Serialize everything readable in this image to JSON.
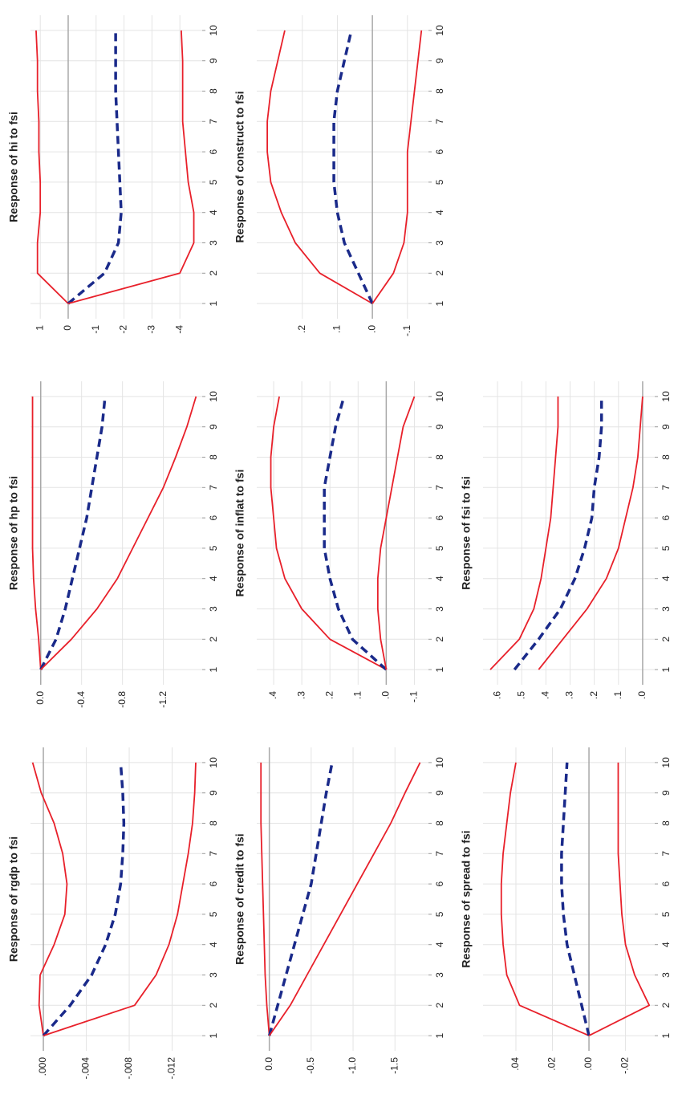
{
  "chart_data": [
    {
      "type": "line",
      "title": "Response of rgdp to fsi",
      "x": [
        1,
        2,
        3,
        4,
        5,
        6,
        7,
        8,
        9,
        10
      ],
      "xlim": [
        0.5,
        10.5
      ],
      "ylim": [
        -0.0148,
        0.0012
      ],
      "grid": true,
      "yticks": [
        {
          "value": 0,
          "label": ".000"
        },
        {
          "value": -0.004,
          "label": "-.004"
        },
        {
          "value": -0.008,
          "label": "-.008"
        },
        {
          "value": -0.012,
          "label": "-.012"
        }
      ],
      "series": [
        {
          "color": "#e8202a",
          "values": [
            0,
            0.0004,
            0.0003,
            -0.001,
            -0.002,
            -0.0022,
            -0.0018,
            -0.001,
            0.0002,
            0.001
          ]
        },
        {
          "color": "#1a2a8a",
          "dashed": true,
          "values": [
            0,
            -0.0025,
            -0.0045,
            -0.0058,
            -0.0067,
            -0.0072,
            -0.0074,
            -0.0075,
            -0.0074,
            -0.0072
          ]
        },
        {
          "color": "#e8202a",
          "values": [
            0,
            -0.0085,
            -0.0105,
            -0.0117,
            -0.0125,
            -0.013,
            -0.0135,
            -0.0139,
            -0.0141,
            -0.0142
          ]
        }
      ]
    },
    {
      "type": "line",
      "title": "Response of hp to fsi",
      "x": [
        1,
        2,
        3,
        4,
        5,
        6,
        7,
        8,
        9,
        10
      ],
      "xlim": [
        0.5,
        10.5
      ],
      "ylim": [
        -1.58,
        0.1
      ],
      "grid": true,
      "yticks": [
        {
          "value": 0,
          "label": "0.0"
        },
        {
          "value": -0.4,
          "label": "-0.4"
        },
        {
          "value": -0.8,
          "label": "-0.8"
        },
        {
          "value": -1.2,
          "label": "-1.2"
        }
      ],
      "series": [
        {
          "color": "#e8202a",
          "values": [
            0,
            0.02,
            0.05,
            0.07,
            0.08,
            0.08,
            0.08,
            0.08,
            0.08,
            0.08
          ]
        },
        {
          "color": "#1a2a8a",
          "dashed": true,
          "values": [
            0,
            -0.15,
            -0.24,
            -0.31,
            -0.38,
            -0.45,
            -0.5,
            -0.55,
            -0.6,
            -0.63
          ]
        },
        {
          "color": "#e8202a",
          "values": [
            0,
            -0.3,
            -0.55,
            -0.75,
            -0.9,
            -1.05,
            -1.2,
            -1.32,
            -1.43,
            -1.52
          ]
        }
      ]
    },
    {
      "type": "line",
      "title": "Response of hi to fsi",
      "x": [
        1,
        2,
        3,
        4,
        5,
        6,
        7,
        8,
        9,
        10
      ],
      "xlim": [
        0.5,
        10.5
      ],
      "ylim": [
        -4.8,
        1.35
      ],
      "grid": true,
      "yticks": [
        1,
        0,
        -1,
        -2,
        -3,
        -4
      ],
      "series": [
        {
          "color": "#e8202a",
          "values": [
            0,
            1.1,
            1.1,
            1.0,
            1.0,
            1.05,
            1.05,
            1.1,
            1.1,
            1.15
          ]
        },
        {
          "color": "#1a2a8a",
          "dashed": true,
          "values": [
            0,
            -1.3,
            -1.8,
            -1.9,
            -1.85,
            -1.8,
            -1.75,
            -1.7,
            -1.7,
            -1.7
          ]
        },
        {
          "color": "#e8202a",
          "values": [
            0,
            -4.0,
            -4.5,
            -4.5,
            -4.3,
            -4.2,
            -4.1,
            -4.1,
            -4.1,
            -4.05
          ]
        }
      ]
    },
    {
      "type": "line",
      "title": "Response of credit to fsi",
      "x": [
        1,
        2,
        3,
        4,
        5,
        6,
        7,
        8,
        9,
        10
      ],
      "xlim": [
        0.5,
        10.5
      ],
      "ylim": [
        -1.9,
        0.15
      ],
      "grid": true,
      "yticks": [
        {
          "value": 0,
          "label": "0.0"
        },
        {
          "value": -0.5,
          "label": "-0.5"
        },
        {
          "value": -1,
          "label": "-1.0"
        },
        {
          "value": -1.5,
          "label": "-1.5"
        }
      ],
      "series": [
        {
          "color": "#e8202a",
          "values": [
            0,
            0.03,
            0.05,
            0.06,
            0.07,
            0.08,
            0.09,
            0.1,
            0.1,
            0.1
          ]
        },
        {
          "color": "#1a2a8a",
          "dashed": true,
          "values": [
            0,
            -0.1,
            -0.2,
            -0.3,
            -0.4,
            -0.5,
            -0.56,
            -0.62,
            -0.68,
            -0.75
          ]
        },
        {
          "color": "#e8202a",
          "values": [
            0,
            -0.25,
            -0.45,
            -0.65,
            -0.85,
            -1.05,
            -1.25,
            -1.45,
            -1.62,
            -1.8
          ]
        }
      ]
    },
    {
      "type": "line",
      "title": "Response of inflat to fsi",
      "x": [
        1,
        2,
        3,
        4,
        5,
        6,
        7,
        8,
        9,
        10
      ],
      "xlim": [
        0.5,
        10.5
      ],
      "ylim": [
        -0.15,
        0.46
      ],
      "grid": true,
      "yticks": [
        {
          "value": 0.4,
          "label": ".4"
        },
        {
          "value": 0.3,
          "label": ".3"
        },
        {
          "value": 0.2,
          "label": ".2"
        },
        {
          "value": 0.1,
          "label": ".1"
        },
        {
          "value": 0,
          "label": ".0"
        },
        {
          "value": -0.1,
          "label": "-.1"
        }
      ],
      "series": [
        {
          "color": "#e8202a",
          "values": [
            0,
            0.2,
            0.3,
            0.36,
            0.39,
            0.4,
            0.41,
            0.41,
            0.4,
            0.38
          ]
        },
        {
          "color": "#1a2a8a",
          "dashed": true,
          "values": [
            0,
            0.12,
            0.17,
            0.2,
            0.22,
            0.22,
            0.22,
            0.2,
            0.18,
            0.15
          ]
        },
        {
          "color": "#e8202a",
          "values": [
            0,
            0.02,
            0.03,
            0.03,
            0.02,
            0.0,
            -0.02,
            -0.04,
            -0.06,
            -0.1
          ]
        }
      ]
    },
    {
      "type": "line",
      "title": "Response of construct to fsi",
      "x": [
        1,
        2,
        3,
        4,
        5,
        6,
        7,
        8,
        9,
        10
      ],
      "xlim": [
        0.5,
        10.5
      ],
      "ylim": [
        -0.16,
        0.33
      ],
      "grid": true,
      "yticks": [
        {
          "value": 0.2,
          "label": ".2"
        },
        {
          "value": 0.1,
          "label": ".1"
        },
        {
          "value": 0,
          "label": ".0"
        },
        {
          "value": -0.1,
          "label": "-.1"
        }
      ],
      "series": [
        {
          "color": "#e8202a",
          "values": [
            0,
            0.15,
            0.22,
            0.26,
            0.29,
            0.3,
            0.3,
            0.29,
            0.27,
            0.25
          ]
        },
        {
          "color": "#1a2a8a",
          "dashed": true,
          "values": [
            0,
            0.04,
            0.08,
            0.1,
            0.11,
            0.11,
            0.11,
            0.1,
            0.08,
            0.06
          ]
        },
        {
          "color": "#e8202a",
          "values": [
            0,
            -0.06,
            -0.09,
            -0.1,
            -0.1,
            -0.1,
            -0.11,
            -0.12,
            -0.13,
            -0.14
          ]
        }
      ]
    },
    {
      "type": "line",
      "title": "Response of spread to fsi",
      "x": [
        1,
        2,
        3,
        4,
        5,
        6,
        7,
        8,
        9,
        10
      ],
      "xlim": [
        0.5,
        10.5
      ],
      "ylim": [
        -0.036,
        0.058
      ],
      "grid": true,
      "yticks": [
        {
          "value": 0.04,
          "label": ".04"
        },
        {
          "value": 0.02,
          "label": ".02"
        },
        {
          "value": 0,
          "label": ".00"
        },
        {
          "value": -0.02,
          "label": "-.02"
        }
      ],
      "series": [
        {
          "color": "#e8202a",
          "values": [
            0,
            0.038,
            0.045,
            0.047,
            0.048,
            0.048,
            0.047,
            0.045,
            0.043,
            0.04
          ]
        },
        {
          "color": "#1a2a8a",
          "dashed": true,
          "values": [
            0,
            0.004,
            0.008,
            0.012,
            0.014,
            0.015,
            0.015,
            0.014,
            0.013,
            0.012
          ]
        },
        {
          "color": "#e8202a",
          "values": [
            0,
            -0.033,
            -0.025,
            -0.02,
            -0.018,
            -0.017,
            -0.016,
            -0.016,
            -0.016,
            -0.016
          ]
        }
      ]
    },
    {
      "type": "line",
      "title": "Response of fsi to fsi",
      "x": [
        1,
        2,
        3,
        4,
        5,
        6,
        7,
        8,
        9,
        10
      ],
      "xlim": [
        0.5,
        10.5
      ],
      "ylim": [
        -0.05,
        0.66
      ],
      "grid": true,
      "yticks": [
        {
          "value": 0.6,
          "label": ".6"
        },
        {
          "value": 0.5,
          "label": ".5"
        },
        {
          "value": 0.4,
          "label": ".4"
        },
        {
          "value": 0.3,
          "label": ".3"
        },
        {
          "value": 0.2,
          "label": ".2"
        },
        {
          "value": 0.1,
          "label": ".1"
        },
        {
          "value": 0,
          "label": ".0"
        }
      ],
      "series": [
        {
          "color": "#e8202a",
          "values": [
            0.63,
            0.51,
            0.45,
            0.42,
            0.4,
            0.38,
            0.37,
            0.36,
            0.35,
            0.35
          ]
        },
        {
          "color": "#1a2a8a",
          "dashed": true,
          "values": [
            0.53,
            0.43,
            0.34,
            0.28,
            0.24,
            0.21,
            0.2,
            0.18,
            0.17,
            0.17
          ]
        },
        {
          "color": "#e8202a",
          "values": [
            0.43,
            0.33,
            0.23,
            0.15,
            0.1,
            0.07,
            0.04,
            0.02,
            0.01,
            0.0
          ]
        }
      ]
    }
  ]
}
